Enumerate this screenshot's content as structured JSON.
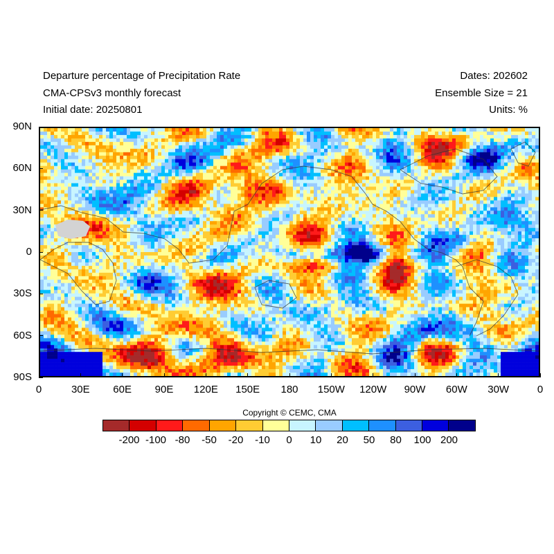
{
  "header": {
    "title_line1": "Departure percentage of Precipitation Rate",
    "title_line2": "CMA-CPSv3 monthly forecast",
    "title_line3": "Initial date: 20250801",
    "right_line1": "Dates: 202602",
    "right_line2": "Ensemble Size = 21",
    "right_line3": "Units: %"
  },
  "map": {
    "lat_labels": [
      "90N",
      "60N",
      "30N",
      "0",
      "30S",
      "60S",
      "90S"
    ],
    "lon_labels": [
      "0",
      "30E",
      "60E",
      "90E",
      "120E",
      "150E",
      "180",
      "150W",
      "120W",
      "90W",
      "60W",
      "30W",
      "0"
    ]
  },
  "copyright": "Copyright © CEMC, CMA",
  "colorbar": {
    "colors": [
      "#a52a2a",
      "#d40000",
      "#ff1a1a",
      "#ff6a00",
      "#ffa500",
      "#ffcc33",
      "#ffff99",
      "#c8f5ff",
      "#99ccff",
      "#00bfff",
      "#1e90ff",
      "#3c5fe0",
      "#0000dd",
      "#00008b"
    ],
    "labels": [
      "-200",
      "-100",
      "-80",
      "-50",
      "-20",
      "-10",
      "0",
      "10",
      "20",
      "50",
      "80",
      "100",
      "200"
    ]
  }
}
